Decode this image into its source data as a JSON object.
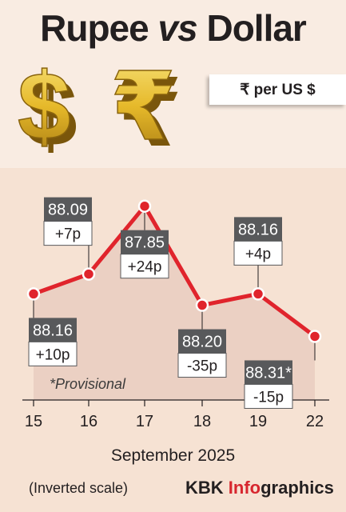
{
  "header": {
    "title_part1": "Rupee ",
    "title_vs": "vs",
    "title_part2": " Dollar",
    "unit": "₹ per US $"
  },
  "note": "*Provisional",
  "footer": {
    "month": "September 2025",
    "scale_note": "(Inverted scale)",
    "brand_prefix": "KBK ",
    "brand_accent": "Info",
    "brand_suffix": "graphics"
  },
  "colors": {
    "line": "#e0242c",
    "area": "#e9cdbf",
    "background": "#f6e2d3",
    "label_dark": "#58595b",
    "label_light": "#ffffff"
  },
  "chart_data": {
    "type": "line",
    "inverted_y": true,
    "categories": [
      "15",
      "16",
      "17",
      "18",
      "19",
      "22"
    ],
    "values": [
      88.16,
      88.09,
      87.85,
      88.2,
      88.16,
      88.31
    ],
    "value_labels": [
      "88.16",
      "88.09",
      "87.85",
      "88.20",
      "88.16",
      "88.31*"
    ],
    "changes": [
      "+10p",
      "+7p",
      "+24p",
      "-35p",
      "+4p",
      "-15p"
    ],
    "label_positions": [
      "below",
      "above",
      "below",
      "below",
      "above",
      "below"
    ],
    "xlabel": "September 2025",
    "ylim": [
      87.8,
      88.45
    ]
  }
}
